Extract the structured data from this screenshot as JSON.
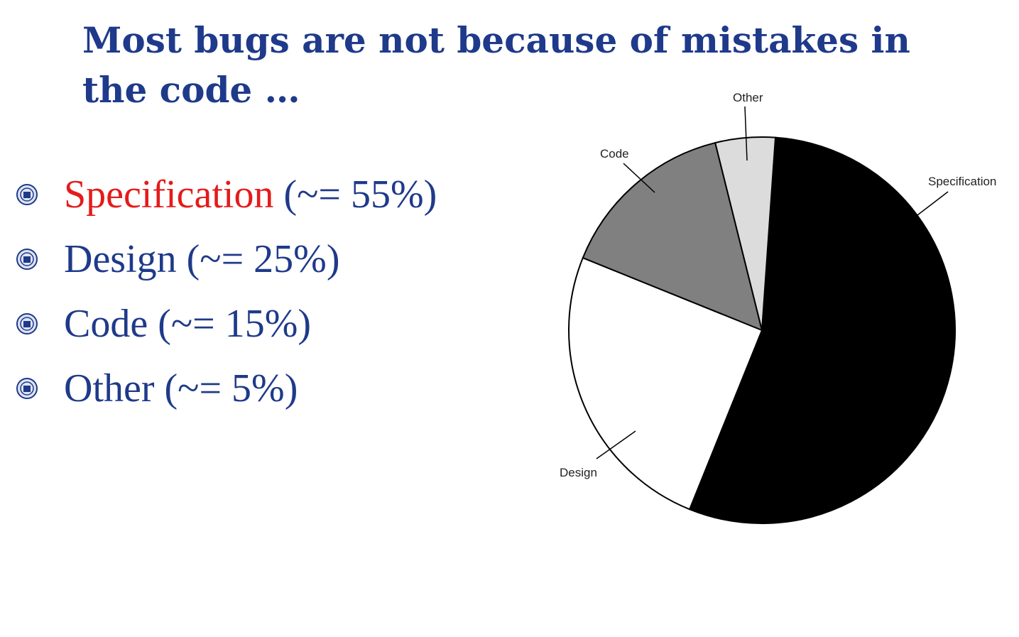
{
  "title": "Most bugs are not because of mistakes in the code …",
  "bullets": [
    {
      "label": "Specification",
      "rest": " (~= 55%)",
      "highlight": true
    },
    {
      "label": "Design",
      "rest": " (~= 25%)",
      "highlight": false
    },
    {
      "label": "Code",
      "rest": " (~= 15%)",
      "highlight": false
    },
    {
      "label": "Other",
      "rest": " (~= 5%)",
      "highlight": false
    }
  ],
  "colors": {
    "title": "#1f3a8a",
    "text": "#1f3a8a",
    "highlight": "#e41b1b"
  },
  "chart_data": {
    "type": "pie",
    "title": "",
    "slices": [
      {
        "label": "Specification",
        "value": 55,
        "color": "#000000"
      },
      {
        "label": "Design",
        "value": 25,
        "color": "#ffffff"
      },
      {
        "label": "Code",
        "value": 15,
        "color": "#808080"
      },
      {
        "label": "Other",
        "value": 5,
        "color": "#dcdcdc"
      }
    ],
    "legend": "none"
  }
}
